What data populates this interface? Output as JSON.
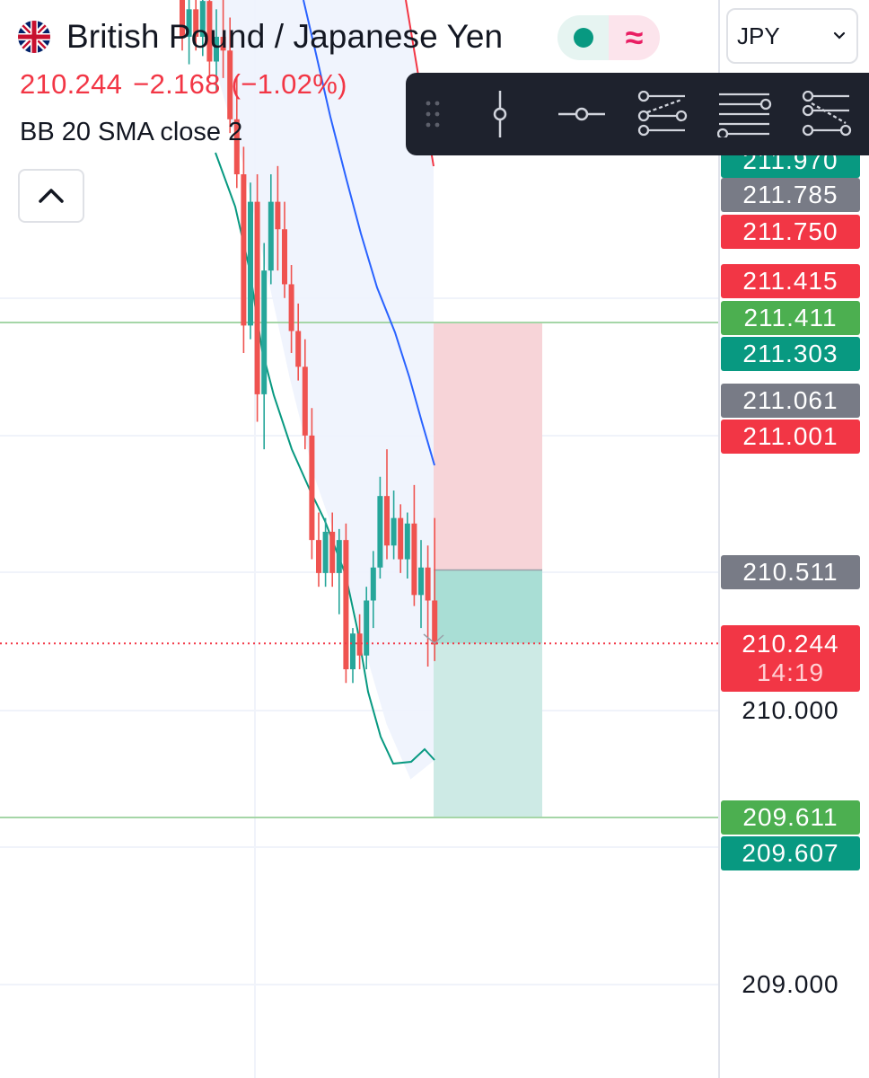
{
  "header": {
    "symbol_name": "British Pound / Japanese Yen",
    "flag_icon": "uk-jp-flag-icon",
    "price": "210.244",
    "change": "−2.168",
    "change_pct": "(−1.02%)",
    "indicator_label": "BB 20 SMA close 2",
    "status_icon": "market-open-dot-icon",
    "wave_icon_glyph": "≈"
  },
  "currency_select": {
    "value": "JPY"
  },
  "toolbar": {
    "tools": [
      {
        "name": "drag-handle-icon"
      },
      {
        "name": "vertical-line-icon"
      },
      {
        "name": "horizontal-line-icon"
      },
      {
        "name": "trend-channel-icon"
      },
      {
        "name": "parallel-lines-icon"
      },
      {
        "name": "fib-lines-icon"
      }
    ]
  },
  "price_axis": {
    "labels": [
      {
        "value": "211.970",
        "color": "#089981"
      },
      {
        "value": "211.785",
        "color": "#787b86"
      },
      {
        "value": "211.750",
        "color": "#f23645"
      },
      {
        "value": "211.415",
        "color": "#f23645"
      },
      {
        "value": "211.411",
        "color": "#4caf50"
      },
      {
        "value": "211.303",
        "color": "#089981"
      },
      {
        "value": "211.061",
        "color": "#787b86"
      },
      {
        "value": "211.001",
        "color": "#f23645"
      },
      {
        "value": "210.511",
        "color": "#787b86"
      },
      {
        "value": "209.611",
        "color": "#4caf50"
      },
      {
        "value": "209.607",
        "color": "#089981"
      }
    ],
    "current": {
      "value": "210.244",
      "countdown": "14:19",
      "color": "#f23645"
    },
    "ticks": [
      "210.000",
      "209.000"
    ]
  },
  "chart_data": {
    "type": "candlestick",
    "symbol": "GBPJPY",
    "indicator": "Bollinger Bands (20, SMA, close, 2)",
    "candles": [
      {
        "o": 212.62,
        "h": 212.7,
        "l": 212.4,
        "c": 212.45
      },
      {
        "o": 212.45,
        "h": 212.6,
        "l": 212.35,
        "c": 212.55
      },
      {
        "o": 212.55,
        "h": 212.7,
        "l": 212.4,
        "c": 212.45
      },
      {
        "o": 212.45,
        "h": 212.62,
        "l": 212.38,
        "c": 212.58
      },
      {
        "o": 212.58,
        "h": 212.65,
        "l": 212.3,
        "c": 212.36
      },
      {
        "o": 212.36,
        "h": 212.55,
        "l": 212.25,
        "c": 212.45
      },
      {
        "o": 212.45,
        "h": 212.6,
        "l": 212.3,
        "c": 212.4
      },
      {
        "o": 212.4,
        "h": 212.52,
        "l": 212.1,
        "c": 212.15
      },
      {
        "o": 212.15,
        "h": 212.3,
        "l": 211.9,
        "c": 211.95
      },
      {
        "o": 211.95,
        "h": 212.05,
        "l": 211.3,
        "c": 211.4
      },
      {
        "o": 211.4,
        "h": 211.92,
        "l": 211.35,
        "c": 211.85
      },
      {
        "o": 211.85,
        "h": 211.95,
        "l": 211.05,
        "c": 211.15
      },
      {
        "o": 211.15,
        "h": 211.7,
        "l": 210.95,
        "c": 211.6
      },
      {
        "o": 211.6,
        "h": 211.95,
        "l": 211.55,
        "c": 211.85
      },
      {
        "o": 211.85,
        "h": 211.98,
        "l": 211.6,
        "c": 211.75
      },
      {
        "o": 211.75,
        "h": 211.85,
        "l": 211.5,
        "c": 211.55
      },
      {
        "o": 211.55,
        "h": 211.62,
        "l": 211.3,
        "c": 211.38
      },
      {
        "o": 211.38,
        "h": 211.48,
        "l": 211.2,
        "c": 211.25
      },
      {
        "o": 211.25,
        "h": 211.35,
        "l": 210.95,
        "c": 211.0
      },
      {
        "o": 211.0,
        "h": 211.1,
        "l": 210.55,
        "c": 210.62
      },
      {
        "o": 210.62,
        "h": 210.72,
        "l": 210.45,
        "c": 210.5
      },
      {
        "o": 210.5,
        "h": 210.7,
        "l": 210.45,
        "c": 210.65
      },
      {
        "o": 210.65,
        "h": 210.72,
        "l": 210.45,
        "c": 210.5
      },
      {
        "o": 210.5,
        "h": 210.66,
        "l": 210.35,
        "c": 210.62
      },
      {
        "o": 210.62,
        "h": 210.68,
        "l": 210.1,
        "c": 210.15
      },
      {
        "o": 210.15,
        "h": 210.3,
        "l": 210.1,
        "c": 210.28
      },
      {
        "o": 210.28,
        "h": 210.35,
        "l": 210.15,
        "c": 210.2
      },
      {
        "o": 210.2,
        "h": 210.45,
        "l": 210.15,
        "c": 210.4
      },
      {
        "o": 210.4,
        "h": 210.58,
        "l": 210.3,
        "c": 210.52
      },
      {
        "o": 210.52,
        "h": 210.85,
        "l": 210.48,
        "c": 210.78
      },
      {
        "o": 210.78,
        "h": 210.95,
        "l": 210.55,
        "c": 210.6
      },
      {
        "o": 210.6,
        "h": 210.8,
        "l": 210.55,
        "c": 210.7
      },
      {
        "o": 210.7,
        "h": 210.75,
        "l": 210.5,
        "c": 210.55
      },
      {
        "o": 210.55,
        "h": 210.72,
        "l": 210.48,
        "c": 210.68
      },
      {
        "o": 210.68,
        "h": 210.82,
        "l": 210.38,
        "c": 210.42
      },
      {
        "o": 210.42,
        "h": 210.62,
        "l": 210.3,
        "c": 210.52
      },
      {
        "o": 210.52,
        "h": 210.6,
        "l": 210.16,
        "c": 210.4
      },
      {
        "o": 210.4,
        "h": 210.7,
        "l": 210.18,
        "c": 210.24
      }
    ],
    "bb_upper": [
      [
        212.7,
        212.71
      ],
      [
        212.3,
        212.68
      ],
      [
        211.9,
        212.66
      ],
      [
        211.6,
        212.63
      ],
      [
        211.35,
        212.6
      ],
      [
        211.2,
        212.57
      ],
      [
        211.0,
        212.54
      ],
      [
        210.95,
        212.51
      ]
    ],
    "bb_basis": [
      212.6,
      212.3,
      212.0,
      211.7,
      211.5,
      211.3,
      211.1,
      210.85
    ],
    "bb_lower": [
      212.3,
      212.0,
      211.6,
      211.2,
      210.85,
      210.6,
      210.25,
      209.95,
      209.75,
      209.82
    ],
    "position": {
      "entry": 210.511,
      "stop": 211.411,
      "target": 209.611
    },
    "horizontal_lines": [
      211.411,
      209.611
    ],
    "current_price": 210.244,
    "ylim": [
      208.62,
      212.7
    ]
  }
}
